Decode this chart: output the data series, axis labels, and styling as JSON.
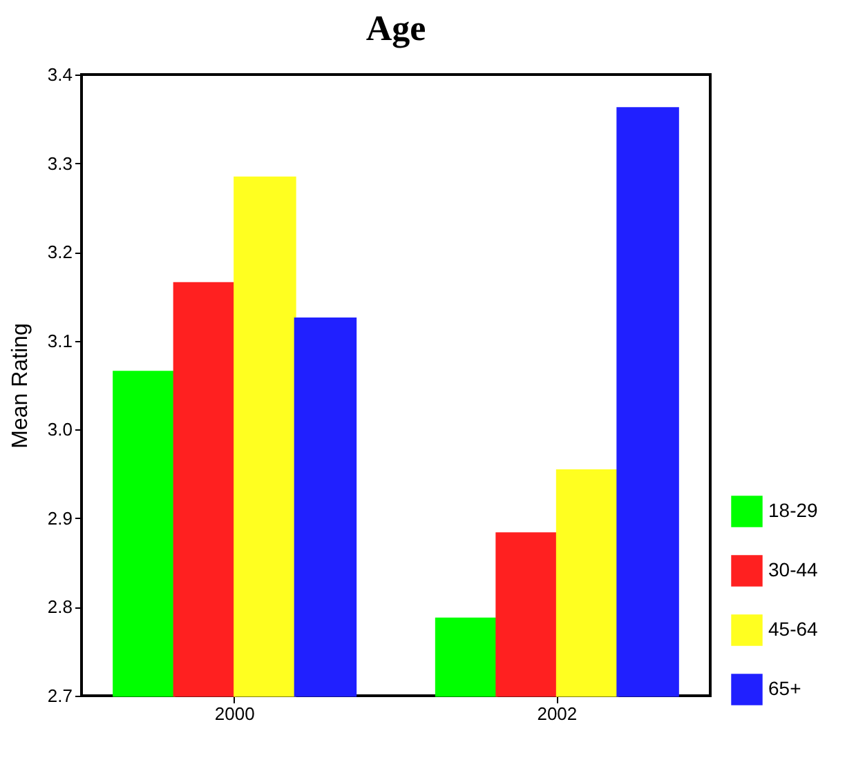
{
  "chart_data": {
    "type": "bar",
    "title": "Age",
    "ylabel": "Mean Rating",
    "categories": [
      "2000",
      "2002"
    ],
    "series": [
      {
        "name": "18-29",
        "color": "#00ff00",
        "values": [
          3.065,
          2.787
        ]
      },
      {
        "name": "30-44",
        "color": "#ff2020",
        "values": [
          3.165,
          2.883
        ]
      },
      {
        "name": "45-64",
        "color": "#ffff20",
        "values": [
          3.284,
          2.954
        ]
      },
      {
        "name": "65+",
        "color": "#2020ff",
        "values": [
          3.125,
          3.362
        ]
      }
    ],
    "ylim": [
      2.7,
      3.4
    ],
    "yticks": [
      2.7,
      2.8,
      2.9,
      {
        "value": 3.0,
        "label": "3.0"
      },
      3.1,
      3.2,
      3.3,
      3.4
    ],
    "grid": false,
    "legend": "bottom right"
  }
}
